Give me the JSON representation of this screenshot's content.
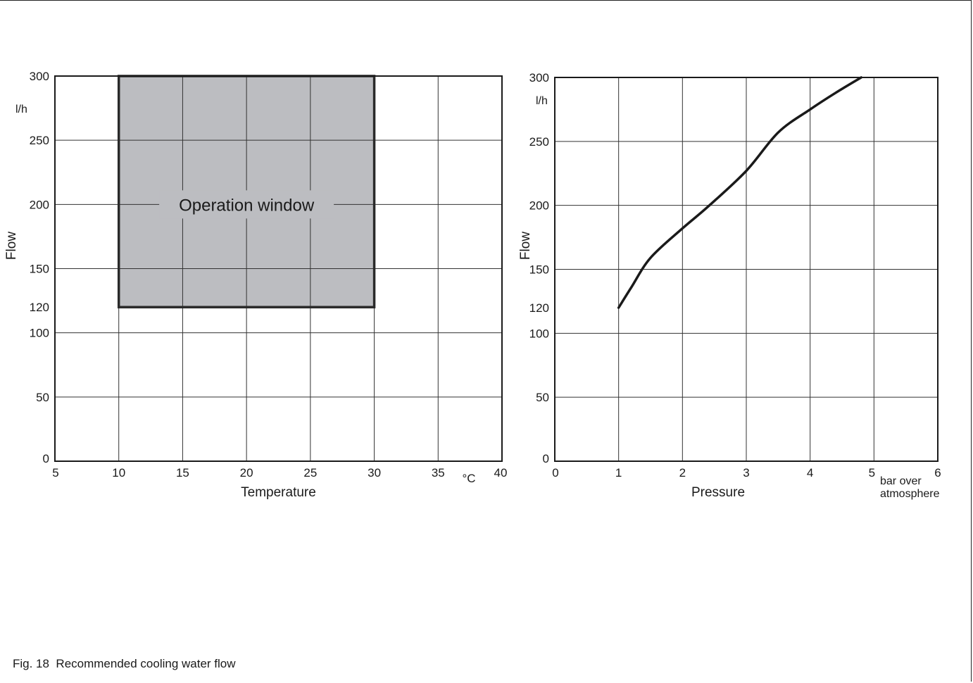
{
  "caption": "Fig. 18  Recommended cooling water flow",
  "chart_data": [
    {
      "type": "area",
      "xlabel": "Temperature",
      "x_unit": "°C",
      "ylabel": "Flow",
      "y_unit": "l/h",
      "xlim": [
        5,
        40
      ],
      "ylim": [
        0,
        300
      ],
      "x_ticks": [
        5,
        10,
        15,
        20,
        25,
        30,
        35,
        40
      ],
      "y_ticks": [
        0,
        50,
        100,
        120,
        150,
        200,
        250,
        300
      ],
      "grid_x": [
        10,
        15,
        20,
        25,
        30,
        35
      ],
      "grid_y": [
        50,
        100,
        150,
        200,
        250
      ],
      "grid": true,
      "region": {
        "label": "Operation window",
        "x_range": [
          10,
          30
        ],
        "y_range": [
          120,
          300
        ],
        "fill": "#bcbdc1",
        "stroke": "#2a2a2a"
      }
    },
    {
      "type": "line",
      "xlabel": "Pressure",
      "x_unit": "bar over atmosphere",
      "ylabel": "Flow",
      "y_unit": "l/h",
      "xlim": [
        0,
        6
      ],
      "ylim": [
        0,
        300
      ],
      "x_ticks": [
        0,
        1,
        2,
        3,
        4,
        5,
        6
      ],
      "y_ticks": [
        0,
        50,
        100,
        120,
        150,
        200,
        250,
        300
      ],
      "grid_x": [
        1,
        2,
        3,
        4,
        5
      ],
      "grid_y": [
        50,
        100,
        150,
        200,
        250
      ],
      "grid": true,
      "series": [
        {
          "x": [
            1.0,
            1.2,
            1.5,
            2.0,
            2.4,
            3.0,
            3.5,
            4.0,
            4.4,
            4.8
          ],
          "y": [
            120,
            136,
            159,
            182,
            199,
            227,
            257,
            275,
            288,
            300
          ],
          "color": "#1a1a1a"
        }
      ]
    }
  ]
}
